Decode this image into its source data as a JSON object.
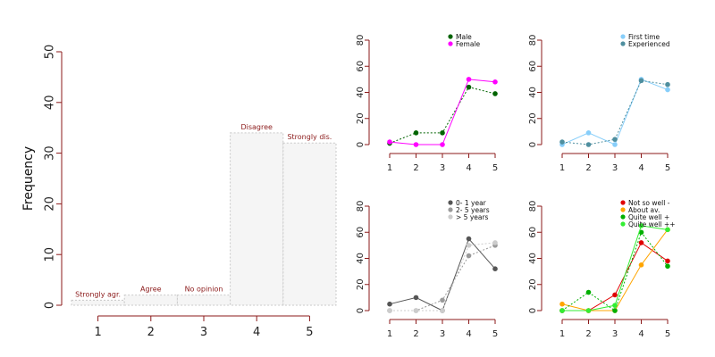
{
  "chart_data": [
    {
      "type": "bar",
      "ylabel": "Frequency",
      "categories": [
        "1",
        "2",
        "3",
        "4",
        "5"
      ],
      "bar_labels": [
        "Strongly agr.",
        "Agree",
        "No opinion",
        "Disagree",
        "Strongly dis."
      ],
      "values": [
        1,
        2,
        2,
        34,
        32
      ],
      "ylim": [
        0,
        50
      ],
      "yticks": [
        0,
        10,
        20,
        30,
        40,
        50
      ],
      "grid": false
    },
    {
      "type": "line",
      "x": [
        1,
        2,
        3,
        4,
        5
      ],
      "ylim": [
        0,
        80
      ],
      "yticks": [
        0,
        20,
        40,
        60,
        80
      ],
      "legend_position": "top-right",
      "series": [
        {
          "name": "Male",
          "color": "#006400",
          "dash": true,
          "values": [
            1,
            9,
            9,
            44,
            39
          ]
        },
        {
          "name": "Female",
          "color": "#ff00ff",
          "dash": false,
          "values": [
            2,
            0,
            0,
            50,
            48
          ]
        }
      ]
    },
    {
      "type": "line",
      "x": [
        1,
        2,
        3,
        4,
        5
      ],
      "ylim": [
        0,
        80
      ],
      "yticks": [
        0,
        20,
        40,
        60,
        80
      ],
      "legend_position": "top-right",
      "series": [
        {
          "name": "First time",
          "color": "#87cefa",
          "dash": false,
          "values": [
            0,
            9,
            0,
            50,
            42
          ]
        },
        {
          "name": "Experienced",
          "color": "#4f8f9f",
          "dash": true,
          "values": [
            2,
            0,
            4,
            49,
            46
          ]
        }
      ]
    },
    {
      "type": "line",
      "x": [
        1,
        2,
        3,
        4,
        5
      ],
      "ylim": [
        0,
        80
      ],
      "yticks": [
        0,
        20,
        40,
        60,
        80
      ],
      "legend_position": "top-right",
      "series": [
        {
          "name": "0- 1 year",
          "color": "#555555",
          "dash": false,
          "values": [
            5,
            10,
            0,
            55,
            32
          ]
        },
        {
          "name": "2- 5 years",
          "color": "#9a9a9a",
          "dash": true,
          "values": [
            0,
            0,
            8,
            42,
            50
          ]
        },
        {
          "name": "> 5 years",
          "color": "#cccccc",
          "dash": true,
          "values": [
            0,
            0,
            0,
            50,
            52
          ]
        }
      ]
    },
    {
      "type": "line",
      "x": [
        1,
        2,
        3,
        4,
        5
      ],
      "ylim": [
        0,
        80
      ],
      "yticks": [
        0,
        20,
        40,
        60,
        80
      ],
      "legend_position": "top-right",
      "series": [
        {
          "name": "Not so well -",
          "color": "#e00000",
          "dash": false,
          "values": [
            0,
            0,
            12,
            52,
            38
          ]
        },
        {
          "name": "About av.",
          "color": "#ffa500",
          "dash": false,
          "values": [
            5,
            0,
            0,
            35,
            62
          ]
        },
        {
          "name": "Quite well +",
          "color": "#00b000",
          "dash": true,
          "values": [
            0,
            14,
            0,
            60,
            34
          ]
        },
        {
          "name": "Quite well ++",
          "color": "#33ee33",
          "dash": false,
          "values": [
            0,
            0,
            4,
            65,
            62
          ]
        }
      ]
    }
  ]
}
